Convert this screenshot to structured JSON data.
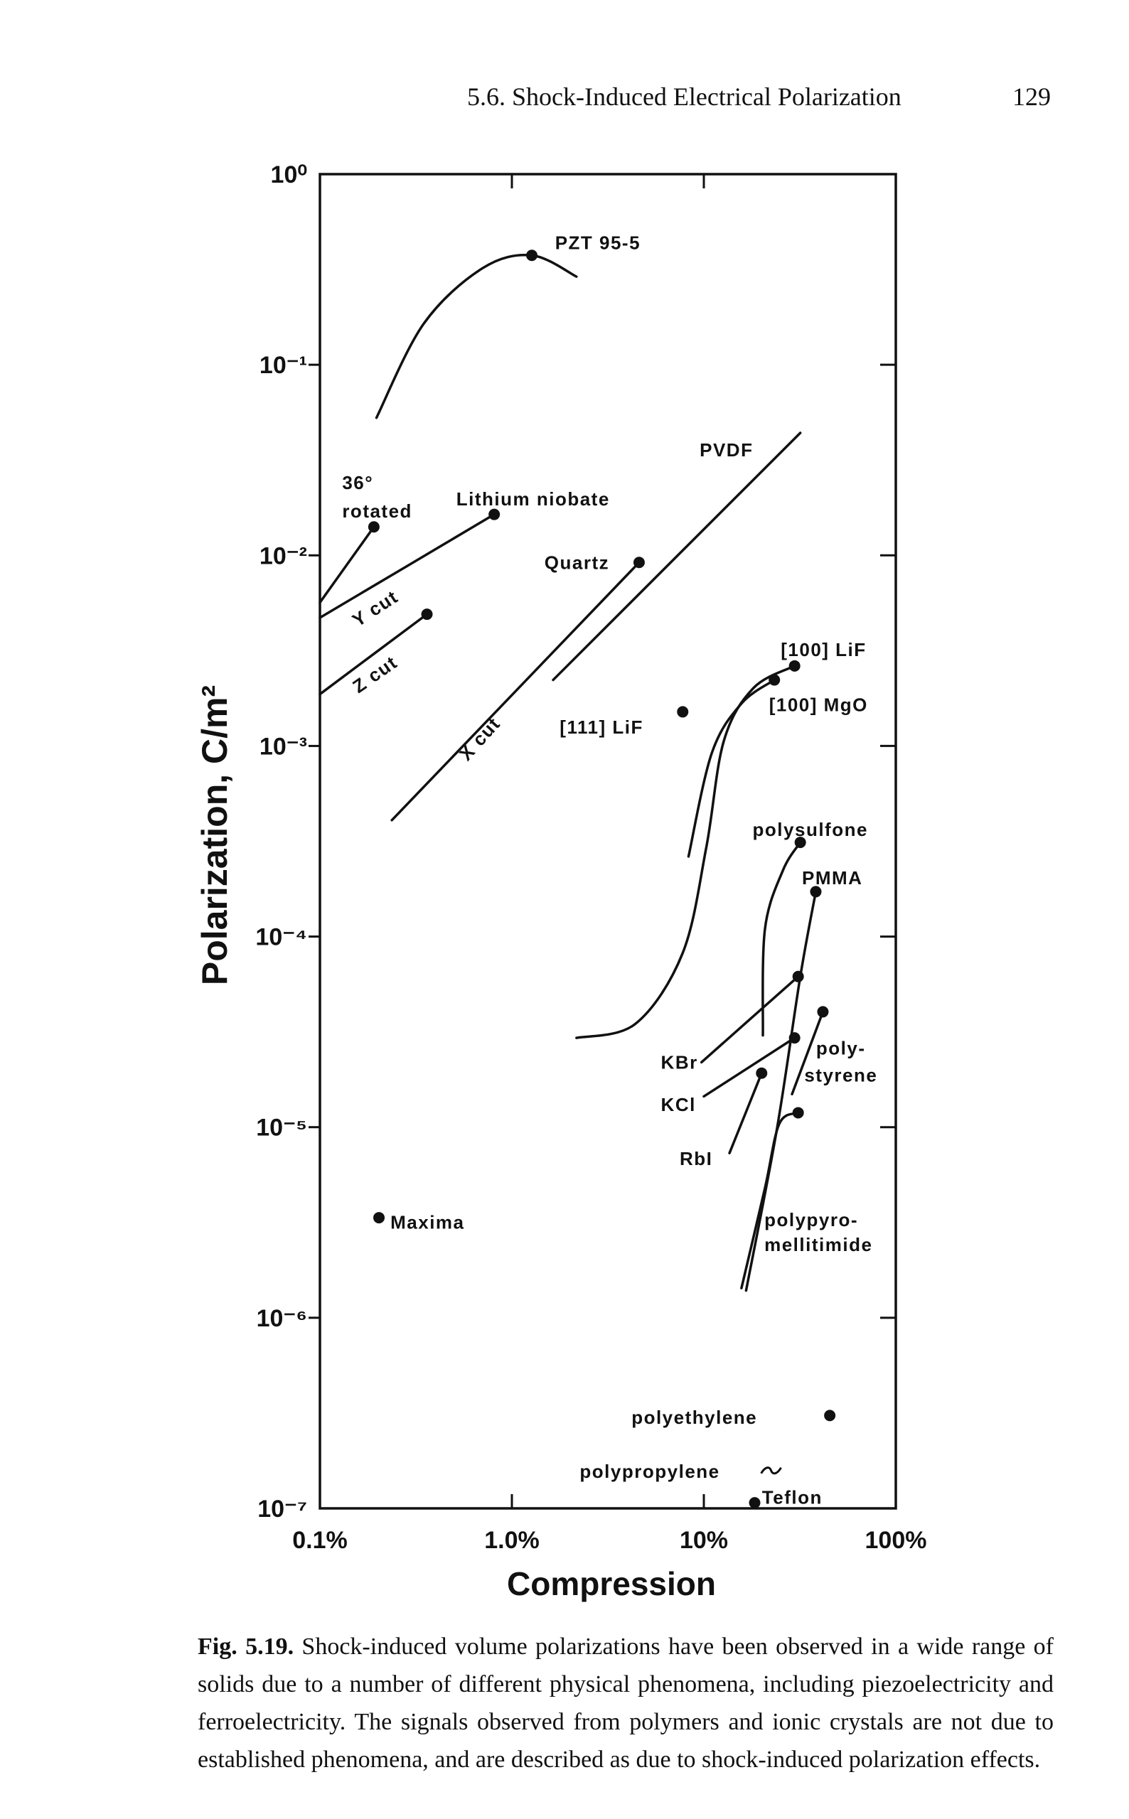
{
  "header": {
    "section": "5.6. Shock-Induced Electrical Polarization",
    "page": "129"
  },
  "chart_data": {
    "type": "line",
    "xscale": "log",
    "yscale": "log",
    "color": "#111111",
    "xlabel": "Compression",
    "ylabel": "Polarization, C/m²",
    "xlim": [
      0.1,
      100
    ],
    "ylim": [
      1e-07,
      1
    ],
    "xticks": [
      {
        "value": 0.1,
        "label": "0.1%"
      },
      {
        "value": 1,
        "label": "1.0%"
      },
      {
        "value": 10,
        "label": "10%"
      },
      {
        "value": 100,
        "label": "100%"
      }
    ],
    "yticks": [
      {
        "value": 1,
        "label": "10⁰"
      },
      {
        "value": 0.1,
        "label": "10⁻¹"
      },
      {
        "value": 0.01,
        "label": "10⁻²"
      },
      {
        "value": 0.001,
        "label": "10⁻³"
      },
      {
        "value": 0.0001,
        "label": "10⁻⁴"
      },
      {
        "value": 1e-05,
        "label": "10⁻⁵"
      },
      {
        "value": 1e-06,
        "label": "10⁻⁶"
      },
      {
        "value": 1e-07,
        "label": "10⁻⁷"
      }
    ],
    "series": [
      {
        "x": [
          0.197,
          0.347,
          0.703,
          1.27,
          2.17
        ],
        "values": [
          0.0527,
          0.164,
          0.321,
          0.375,
          0.29
        ]
      },
      {
        "x": [
          0.1,
          0.191
        ],
        "values": [
          0.00566,
          0.0141
        ]
      },
      {
        "x": [
          0.1,
          0.809
        ],
        "values": [
          0.00471,
          0.0164
        ]
      },
      {
        "x": [
          0.1,
          0.361
        ],
        "values": [
          0.00187,
          0.00491
        ]
      },
      {
        "x": [
          0.237,
          4.6
        ],
        "values": [
          0.000408,
          0.00918
        ]
      },
      {
        "x": [
          1.64,
          31.8
        ],
        "values": [
          0.00222,
          0.0439
        ]
      },
      {
        "x": [
          2.17,
          4.41,
          7.76,
          10.3,
          12.7,
          18.1,
          29.7
        ],
        "values": [
          2.94e-05,
          3.49e-05,
          8.2e-05,
          0.000294,
          0.00106,
          0.00201,
          0.00263
        ]
      },
      {
        "x": [
          8.32,
          11.0,
          15.7,
          23.3
        ],
        "values": [
          0.000263,
          0.000918,
          0.00167,
          0.00222
        ]
      },
      {
        "x": [
          20.3,
          20.8,
          25.8,
          31.8
        ],
        "values": [
          3.03e-05,
          0.000109,
          0.000222,
          0.000312
        ]
      },
      {
        "x": [
          16.6,
          24.0,
          31.8,
          38.3
        ],
        "values": [
          1.39e-06,
          9.72e-06,
          6.17e-05,
          0.000172
        ]
      },
      {
        "x": [
          15.7,
          20.8,
          24.7,
          31.0
        ],
        "values": [
          1.43e-06,
          4.78e-06,
          1.04e-05,
          1.19e-05
        ]
      },
      {
        "x": [
          28.8,
          41.7
        ],
        "values": [
          1.49e-05,
          4.03e-05
        ]
      },
      {
        "x": [
          9.72,
          31.0
        ],
        "values": [
          2.19e-05,
          6.17e-05
        ]
      },
      {
        "x": [
          10.0,
          29.7
        ],
        "values": [
          1.45e-05,
          2.94e-05
        ]
      },
      {
        "x": [
          13.6,
          20.0
        ],
        "values": [
          7.31e-06,
          1.92e-05
        ]
      }
    ],
    "points": {
      "x": [
        1.27,
        0.191,
        0.809,
        0.361,
        4.6,
        7.76,
        29.7,
        23.3,
        31.8,
        38.3,
        31.0,
        29.7,
        41.7,
        20.0,
        31.0,
        0.203,
        45.3,
        18.4
      ],
      "values": [
        0.375,
        0.0141,
        0.0164,
        0.00491,
        0.00918,
        0.00151,
        0.00263,
        0.00222,
        0.000312,
        0.000172,
        6.17e-05,
        2.94e-05,
        4.03e-05,
        1.92e-05,
        1.19e-05,
        3.35e-06,
        3.07e-07,
        1.07e-07
      ]
    },
    "squiggles": {
      "x": [
        22.4
      ],
      "values": [
        1.58e-07
      ]
    },
    "annotations": [
      "PZT 95-5",
      "36°",
      "rotated",
      "Lithium niobate",
      "PVDF",
      "Quartz",
      "Y cut",
      "Z cut",
      "X cut",
      "[111]  LiF",
      "[100] LiF",
      "[100] MgO",
      "polysulfone",
      "PMMA",
      "poly-",
      "styrene",
      "KBr",
      "KCl",
      "RbI",
      "polypyro-",
      "mellitimide",
      "Maxima",
      "polyethylene",
      "polypropylene",
      "Teflon"
    ]
  },
  "figure": {
    "label": "Fig. 5.19.",
    "caption": "Shock-induced volume polarizations have been observed in a wide range of solids due to a number of different physical phenomena, including piezoelectricity and ferroelectricity. The signals observed from polymers and ionic crystals are not due to established phenomena, and are described as due to shock-induced polarization effects."
  }
}
